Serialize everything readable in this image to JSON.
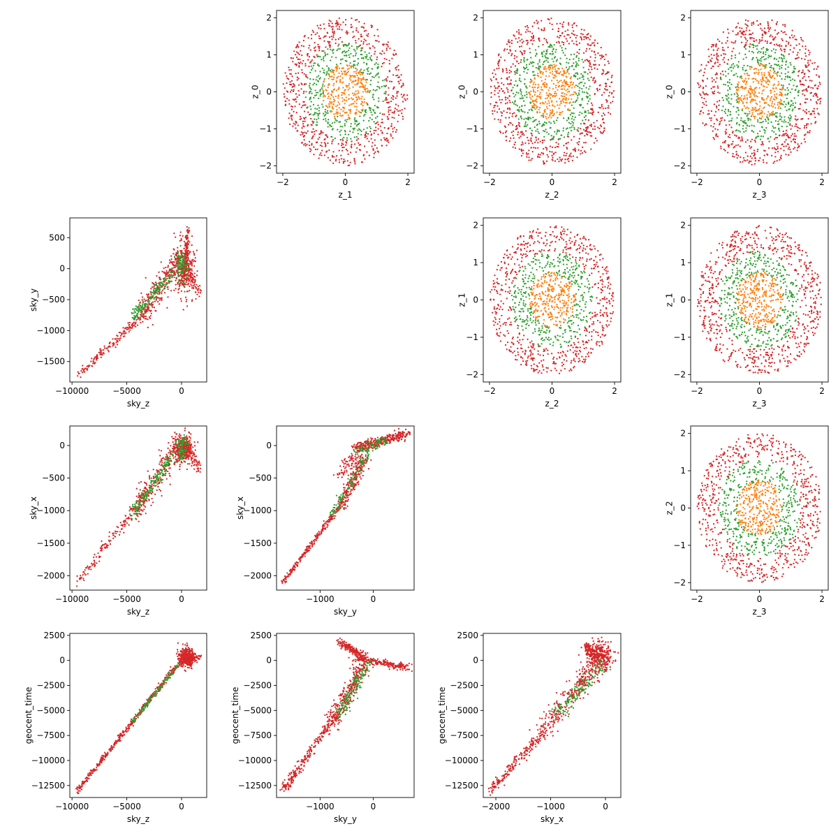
{
  "figure": {
    "background": "#ffffff"
  },
  "palette": {
    "inner": "#ff7f0e",
    "middle": "#2ca02c",
    "outer": "#d62728"
  },
  "chart_data": [
    {
      "type": "scatter",
      "pattern": "disk",
      "xlabel": "z_1",
      "ylabel": "z_0",
      "xlim": [
        -2.2,
        2.2
      ],
      "ylim": [
        -2.2,
        2.2
      ],
      "xticks": [
        -2,
        0,
        2
      ],
      "yticks": [
        -2,
        -1,
        0,
        1,
        2
      ],
      "series": [
        {
          "color": "#d62728",
          "ring": [
            1.3,
            2.0
          ],
          "n": 650
        },
        {
          "color": "#2ca02c",
          "ring": [
            0.7,
            1.3
          ],
          "n": 380
        },
        {
          "color": "#ff7f0e",
          "ring": [
            0.0,
            0.75
          ],
          "n": 300
        }
      ]
    },
    {
      "type": "scatter",
      "pattern": "disk",
      "xlabel": "z_2",
      "ylabel": "z_0",
      "xlim": [
        -2.2,
        2.2
      ],
      "ylim": [
        -2.2,
        2.2
      ],
      "xticks": [
        -2,
        0,
        2
      ],
      "yticks": [
        -2,
        -1,
        0,
        1,
        2
      ],
      "series": [
        {
          "color": "#d62728",
          "ring": [
            1.3,
            2.0
          ],
          "n": 650
        },
        {
          "color": "#2ca02c",
          "ring": [
            0.7,
            1.3
          ],
          "n": 380
        },
        {
          "color": "#ff7f0e",
          "ring": [
            0.0,
            0.75
          ],
          "n": 300
        }
      ]
    },
    {
      "type": "scatter",
      "pattern": "disk",
      "xlabel": "z_3",
      "ylabel": "z_0",
      "xlim": [
        -2.2,
        2.2
      ],
      "ylim": [
        -2.2,
        2.2
      ],
      "xticks": [
        -2,
        0,
        2
      ],
      "yticks": [
        -2,
        -1,
        0,
        1,
        2
      ],
      "series": [
        {
          "color": "#d62728",
          "ring": [
            1.3,
            2.0
          ],
          "n": 650
        },
        {
          "color": "#2ca02c",
          "ring": [
            0.7,
            1.3
          ],
          "n": 380
        },
        {
          "color": "#ff7f0e",
          "ring": [
            0.0,
            0.75
          ],
          "n": 300
        }
      ]
    },
    {
      "type": "scatter",
      "pattern": "scatter",
      "xlabel": "sky_z",
      "ylabel": "sky_y",
      "xlim": [
        -10200,
        2300
      ],
      "ylim": [
        -1830,
        820
      ],
      "xticks": [
        -10000,
        -5000,
        0
      ],
      "yticks": [
        -1500,
        -1000,
        -500,
        0,
        500
      ],
      "series": [
        {
          "color": "#d62728",
          "clusters": [
            {
              "kind": "line",
              "from": [
                -9500,
                -1720
              ],
              "to": [
                -3000,
                -650
              ],
              "spread": [
                140,
                35
              ],
              "n": 170
            },
            {
              "kind": "line",
              "from": [
                -3800,
                -750
              ],
              "to": [
                -300,
                120
              ],
              "spread": [
                220,
                120
              ],
              "n": 260
            },
            {
              "kind": "blob",
              "center": [
                250,
                0
              ],
              "spread": [
                450,
                240
              ],
              "n": 330
            },
            {
              "kind": "line",
              "from": [
                200,
                -150
              ],
              "to": [
                600,
                650
              ],
              "spread": [
                90,
                40
              ],
              "n": 100
            },
            {
              "kind": "line",
              "from": [
                400,
                -50
              ],
              "to": [
                1700,
                -400
              ],
              "spread": [
                120,
                60
              ],
              "n": 60
            }
          ]
        },
        {
          "color": "#2ca02c",
          "clusters": [
            {
              "kind": "line",
              "from": [
                -4500,
                -800
              ],
              "to": [
                -800,
                -50
              ],
              "spread": [
                160,
                50
              ],
              "n": 150
            },
            {
              "kind": "blob",
              "center": [
                0,
                50
              ],
              "spread": [
                280,
                120
              ],
              "n": 90
            }
          ]
        }
      ]
    },
    {
      "type": "scatter",
      "pattern": "disk",
      "xlabel": "z_2",
      "ylabel": "z_1",
      "xlim": [
        -2.2,
        2.2
      ],
      "ylim": [
        -2.2,
        2.2
      ],
      "xticks": [
        -2,
        0,
        2
      ],
      "yticks": [
        -2,
        -1,
        0,
        1,
        2
      ],
      "series": [
        {
          "color": "#d62728",
          "ring": [
            1.3,
            2.0
          ],
          "n": 650
        },
        {
          "color": "#2ca02c",
          "ring": [
            0.7,
            1.3
          ],
          "n": 380
        },
        {
          "color": "#ff7f0e",
          "ring": [
            0.0,
            0.75
          ],
          "n": 300
        }
      ]
    },
    {
      "type": "scatter",
      "pattern": "disk",
      "xlabel": "z_3",
      "ylabel": "z_1",
      "xlim": [
        -2.2,
        2.2
      ],
      "ylim": [
        -2.2,
        2.2
      ],
      "xticks": [
        -2,
        0,
        2
      ],
      "yticks": [
        -2,
        -1,
        0,
        1,
        2
      ],
      "series": [
        {
          "color": "#d62728",
          "ring": [
            1.3,
            2.0
          ],
          "n": 650
        },
        {
          "color": "#2ca02c",
          "ring": [
            0.7,
            1.3
          ],
          "n": 380
        },
        {
          "color": "#ff7f0e",
          "ring": [
            0.0,
            0.75
          ],
          "n": 300
        }
      ]
    },
    {
      "type": "scatter",
      "pattern": "scatter",
      "xlabel": "sky_z",
      "ylabel": "sky_x",
      "xlim": [
        -10200,
        2300
      ],
      "ylim": [
        -2220,
        300
      ],
      "xticks": [
        -10000,
        -5000,
        0
      ],
      "yticks": [
        -2000,
        -1500,
        -1000,
        -500,
        0
      ],
      "series": [
        {
          "color": "#d62728",
          "clusters": [
            {
              "kind": "line",
              "from": [
                -9500,
                -2100
              ],
              "to": [
                -3000,
                -700
              ],
              "spread": [
                150,
                50
              ],
              "n": 170
            },
            {
              "kind": "line",
              "from": [
                -4200,
                -1000
              ],
              "to": [
                -300,
                0
              ],
              "spread": [
                220,
                120
              ],
              "n": 260
            },
            {
              "kind": "blob",
              "center": [
                250,
                -60
              ],
              "spread": [
                420,
                110
              ],
              "n": 320
            },
            {
              "kind": "line",
              "from": [
                300,
                50
              ],
              "to": [
                1700,
                -400
              ],
              "spread": [
                120,
                50
              ],
              "n": 70
            }
          ]
        },
        {
          "color": "#2ca02c",
          "clusters": [
            {
              "kind": "line",
              "from": [
                -4500,
                -1050
              ],
              "to": [
                -800,
                -150
              ],
              "spread": [
                150,
                50
              ],
              "n": 150
            },
            {
              "kind": "blob",
              "center": [
                0,
                -50
              ],
              "spread": [
                260,
                90
              ],
              "n": 80
            }
          ]
        }
      ]
    },
    {
      "type": "scatter",
      "pattern": "scatter",
      "xlabel": "sky_y",
      "ylabel": "sky_x",
      "xlim": [
        -1820,
        770
      ],
      "ylim": [
        -2220,
        300
      ],
      "xticks": [
        -1000,
        0
      ],
      "yticks": [
        -2000,
        -1500,
        -1000,
        -500,
        0
      ],
      "series": [
        {
          "color": "#d62728",
          "clusters": [
            {
              "kind": "line",
              "from": [
                -1700,
                -2100
              ],
              "to": [
                -600,
                -900
              ],
              "spread": [
                18,
                22
              ],
              "n": 230
            },
            {
              "kind": "line",
              "from": [
                -600,
                -900
              ],
              "to": [
                -150,
                -200
              ],
              "spread": [
                40,
                60
              ],
              "n": 220
            },
            {
              "kind": "line",
              "from": [
                -600,
                -450
              ],
              "to": [
                -100,
                50
              ],
              "spread": [
                80,
                40
              ],
              "n": 110
            },
            {
              "kind": "line",
              "from": [
                -300,
                -30
              ],
              "to": [
                650,
                180
              ],
              "spread": [
                60,
                35
              ],
              "n": 300
            }
          ]
        },
        {
          "color": "#2ca02c",
          "clusters": [
            {
              "kind": "line",
              "from": [
                -800,
                -1100
              ],
              "to": [
                -50,
                -50
              ],
              "spread": [
                35,
                40
              ],
              "n": 100
            },
            {
              "kind": "line",
              "from": [
                -300,
                -80
              ],
              "to": [
                200,
                80
              ],
              "spread": [
                60,
                40
              ],
              "n": 70
            }
          ]
        }
      ]
    },
    {
      "type": "scatter",
      "pattern": "disk",
      "xlabel": "z_3",
      "ylabel": "z_2",
      "xlim": [
        -2.2,
        2.2
      ],
      "ylim": [
        -2.2,
        2.2
      ],
      "xticks": [
        -2,
        0,
        2
      ],
      "yticks": [
        -2,
        -1,
        0,
        1,
        2
      ],
      "series": [
        {
          "color": "#d62728",
          "ring": [
            1.3,
            2.0
          ],
          "n": 650
        },
        {
          "color": "#2ca02c",
          "ring": [
            0.7,
            1.3
          ],
          "n": 380
        },
        {
          "color": "#ff7f0e",
          "ring": [
            0.0,
            0.75
          ],
          "n": 300
        }
      ]
    },
    {
      "type": "scatter",
      "pattern": "scatter",
      "xlabel": "sky_z",
      "ylabel": "geocent_time",
      "xlim": [
        -10200,
        2300
      ],
      "ylim": [
        -13700,
        2700
      ],
      "xticks": [
        -10000,
        -5000,
        0
      ],
      "yticks": [
        -12500,
        -10000,
        -7500,
        -5000,
        -2500,
        0,
        2500
      ],
      "series": [
        {
          "color": "#d62728",
          "clusters": [
            {
              "kind": "line",
              "from": [
                -9500,
                -13000
              ],
              "to": [
                -500,
                -600
              ],
              "spread": [
                90,
                130
              ],
              "n": 420
            },
            {
              "kind": "blob",
              "center": [
                500,
                300
              ],
              "spread": [
                380,
                450
              ],
              "n": 380
            },
            {
              "kind": "line",
              "from": [
                200,
                0
              ],
              "to": [
                1700,
                300
              ],
              "spread": [
                120,
                180
              ],
              "n": 70
            }
          ]
        },
        {
          "color": "#2ca02c",
          "clusters": [
            {
              "kind": "line",
              "from": [
                -4500,
                -6200
              ],
              "to": [
                -300,
                -400
              ],
              "spread": [
                80,
                150
              ],
              "n": 120
            }
          ]
        }
      ]
    },
    {
      "type": "scatter",
      "pattern": "scatter",
      "xlabel": "sky_y",
      "ylabel": "geocent_time",
      "xlim": [
        -1820,
        770
      ],
      "ylim": [
        -13700,
        2700
      ],
      "xticks": [
        -1000,
        0
      ],
      "yticks": [
        -12500,
        -10000,
        -7500,
        -5000,
        -2500,
        0,
        2500
      ],
      "series": [
        {
          "color": "#d62728",
          "clusters": [
            {
              "kind": "line",
              "from": [
                -1700,
                -13000
              ],
              "to": [
                -700,
                -5500
              ],
              "spread": [
                35,
                250
              ],
              "n": 230
            },
            {
              "kind": "line",
              "from": [
                -800,
                -6500
              ],
              "to": [
                -200,
                -600
              ],
              "spread": [
                70,
                500
              ],
              "n": 280
            },
            {
              "kind": "line",
              "from": [
                -650,
                1800
              ],
              "to": [
                -150,
                300
              ],
              "spread": [
                35,
                180
              ],
              "n": 170
            },
            {
              "kind": "line",
              "from": [
                -300,
                200
              ],
              "to": [
                650,
                -700
              ],
              "spread": [
                60,
                160
              ],
              "n": 220
            }
          ]
        },
        {
          "color": "#2ca02c",
          "clusters": [
            {
              "kind": "line",
              "from": [
                -650,
                -5500
              ],
              "to": [
                -100,
                -300
              ],
              "spread": [
                50,
                300
              ],
              "n": 130
            }
          ]
        }
      ]
    },
    {
      "type": "scatter",
      "pattern": "scatter",
      "xlabel": "sky_x",
      "ylabel": "geocent_time",
      "xlim": [
        -2230,
        280
      ],
      "ylim": [
        -13700,
        2700
      ],
      "xticks": [
        -2000,
        -1000,
        0
      ],
      "yticks": [
        -12500,
        -10000,
        -7500,
        -5000,
        -2500,
        0,
        2500
      ],
      "series": [
        {
          "color": "#d62728",
          "clusters": [
            {
              "kind": "line",
              "from": [
                -2100,
                -13000
              ],
              "to": [
                -1100,
                -7000
              ],
              "spread": [
                40,
                250
              ],
              "n": 200
            },
            {
              "kind": "line",
              "from": [
                -1200,
                -7200
              ],
              "to": [
                -100,
                -200
              ],
              "spread": [
                90,
                500
              ],
              "n": 300
            },
            {
              "kind": "blob",
              "center": [
                -100,
                500
              ],
              "spread": [
                110,
                650
              ],
              "n": 280
            },
            {
              "kind": "line",
              "from": [
                -350,
                1700
              ],
              "to": [
                -250,
                300
              ],
              "spread": [
                40,
                150
              ],
              "n": 80
            }
          ]
        },
        {
          "color": "#2ca02c",
          "clusters": [
            {
              "kind": "line",
              "from": [
                -900,
                -5500
              ],
              "to": [
                -50,
                -400
              ],
              "spread": [
                70,
                300
              ],
              "n": 130
            }
          ]
        }
      ]
    }
  ]
}
